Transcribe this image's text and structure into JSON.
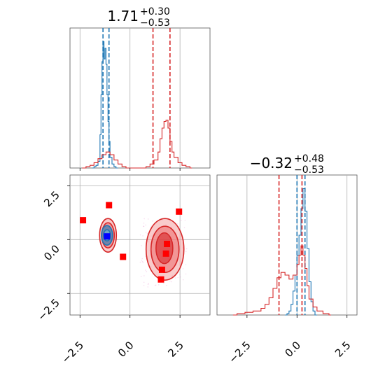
{
  "chart_data": [
    {
      "type": "histogram",
      "panel": "top-left",
      "title": {
        "value": "1.71",
        "upper": "+0.30",
        "lower": "−0.53"
      },
      "xlim": [
        -3.0,
        4.0
      ],
      "xticks": [
        -2.5,
        0.0,
        2.5
      ],
      "grid": true,
      "series": [
        {
          "color": "#1f77b4",
          "quantiles": [
            -1.35,
            -1.05
          ],
          "bins": [
            [
              -1.9,
              0
            ],
            [
              -1.8,
              0.01
            ],
            [
              -1.7,
              0.02
            ],
            [
              -1.6,
              0.05
            ],
            [
              -1.5,
              0.25
            ],
            [
              -1.45,
              0.55
            ],
            [
              -1.4,
              0.8
            ],
            [
              -1.35,
              0.95
            ],
            [
              -1.3,
              0.82
            ],
            [
              -1.25,
              0.9
            ],
            [
              -1.2,
              0.78
            ],
            [
              -1.15,
              0.55
            ],
            [
              -1.1,
              0.35
            ],
            [
              -1.05,
              0.2
            ],
            [
              -1.0,
              0.08
            ],
            [
              -0.9,
              0.03
            ],
            [
              -0.8,
              0.01
            ],
            [
              -0.7,
              0
            ]
          ]
        },
        {
          "color": "#d62728",
          "quantiles": [
            1.15,
            2.0
          ],
          "bins": [
            [
              -2.4,
              0
            ],
            [
              -2.2,
              0.01
            ],
            [
              -2.0,
              0.02
            ],
            [
              -1.8,
              0.04
            ],
            [
              -1.6,
              0.07
            ],
            [
              -1.4,
              0.1
            ],
            [
              -1.2,
              0.12
            ],
            [
              -1.0,
              0.1
            ],
            [
              -0.8,
              0.06
            ],
            [
              -0.6,
              0.03
            ],
            [
              -0.4,
              0.01
            ],
            [
              -0.2,
              0
            ],
            [
              0.8,
              0.01
            ],
            [
              1.0,
              0.03
            ],
            [
              1.2,
              0.06
            ],
            [
              1.4,
              0.12
            ],
            [
              1.5,
              0.22
            ],
            [
              1.6,
              0.3
            ],
            [
              1.7,
              0.35
            ],
            [
              1.8,
              0.36
            ],
            [
              1.9,
              0.3
            ],
            [
              2.0,
              0.2
            ],
            [
              2.1,
              0.12
            ],
            [
              2.2,
              0.08
            ],
            [
              2.4,
              0.04
            ],
            [
              2.6,
              0.02
            ],
            [
              2.8,
              0.01
            ],
            [
              3.0,
              0
            ]
          ]
        }
      ]
    },
    {
      "type": "scatter",
      "panel": "bottom-left",
      "xlim": [
        -3.0,
        4.0
      ],
      "ylim": [
        -3.5,
        3.0
      ],
      "xticks": [
        -2.5,
        0.0,
        2.5
      ],
      "yticks": [
        2.5,
        0.0,
        -2.5
      ],
      "grid": true,
      "points": [
        {
          "x": -2.35,
          "y": 0.9
        },
        {
          "x": -1.05,
          "y": 1.6
        },
        {
          "x": -0.35,
          "y": -0.8
        },
        {
          "x": 2.45,
          "y": 1.3
        },
        {
          "x": 1.85,
          "y": -0.2
        },
        {
          "x": 1.8,
          "y": -0.65
        },
        {
          "x": 1.6,
          "y": -1.4
        },
        {
          "x": 1.55,
          "y": -1.85
        }
      ],
      "point_color": "#ff0000",
      "truth_marker": {
        "x": -1.15,
        "y": 0.15,
        "color": "#0000ff"
      }
    },
    {
      "type": "histogram",
      "panel": "bottom-right",
      "title": {
        "value": "−0.32",
        "upper": "+0.48",
        "lower": "−0.53"
      },
      "xlim": [
        -4.0,
        3.0
      ],
      "xticks": [
        -2.5,
        0.0,
        2.5
      ],
      "grid": true,
      "series": [
        {
          "color": "#1f77b4",
          "quantiles": [
            0.0,
            0.4
          ],
          "bins": [
            [
              -0.6,
              0
            ],
            [
              -0.5,
              0.01
            ],
            [
              -0.4,
              0.03
            ],
            [
              -0.3,
              0.08
            ],
            [
              -0.2,
              0.18
            ],
            [
              -0.1,
              0.3
            ],
            [
              0.0,
              0.45
            ],
            [
              0.1,
              0.6
            ],
            [
              0.2,
              0.8
            ],
            [
              0.3,
              0.95
            ],
            [
              0.4,
              0.78
            ],
            [
              0.5,
              0.5
            ],
            [
              0.6,
              0.25
            ],
            [
              0.7,
              0.1
            ],
            [
              0.8,
              0.03
            ],
            [
              0.9,
              0
            ]
          ]
        },
        {
          "color": "#d62728",
          "quantiles": [
            -0.9,
            0.25
          ],
          "bins": [
            [
              -3.2,
              0
            ],
            [
              -3.0,
              0.01
            ],
            [
              -2.6,
              0.02
            ],
            [
              -2.2,
              0.03
            ],
            [
              -1.8,
              0.05
            ],
            [
              -1.6,
              0.08
            ],
            [
              -1.4,
              0.13
            ],
            [
              -1.2,
              0.2
            ],
            [
              -1.0,
              0.28
            ],
            [
              -0.8,
              0.32
            ],
            [
              -0.6,
              0.3
            ],
            [
              -0.4,
              0.27
            ],
            [
              -0.2,
              0.3
            ],
            [
              0.0,
              0.38
            ],
            [
              0.1,
              0.45
            ],
            [
              0.2,
              0.52
            ],
            [
              0.3,
              0.45
            ],
            [
              0.4,
              0.35
            ],
            [
              0.5,
              0.22
            ],
            [
              0.6,
              0.12
            ],
            [
              0.8,
              0.06
            ],
            [
              1.0,
              0.03
            ],
            [
              1.3,
              0.01
            ],
            [
              1.6,
              0
            ]
          ]
        }
      ]
    }
  ]
}
